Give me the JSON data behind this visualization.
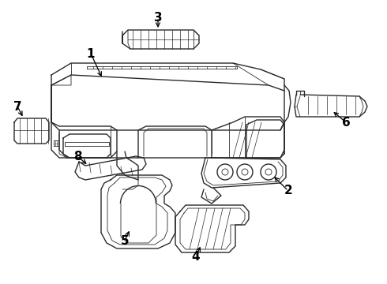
{
  "background_color": "#ffffff",
  "line_color": "#2a2a2a",
  "label_color": "#000000",
  "fig_width": 4.9,
  "fig_height": 3.6,
  "dpi": 100,
  "label_fontsize": 11
}
